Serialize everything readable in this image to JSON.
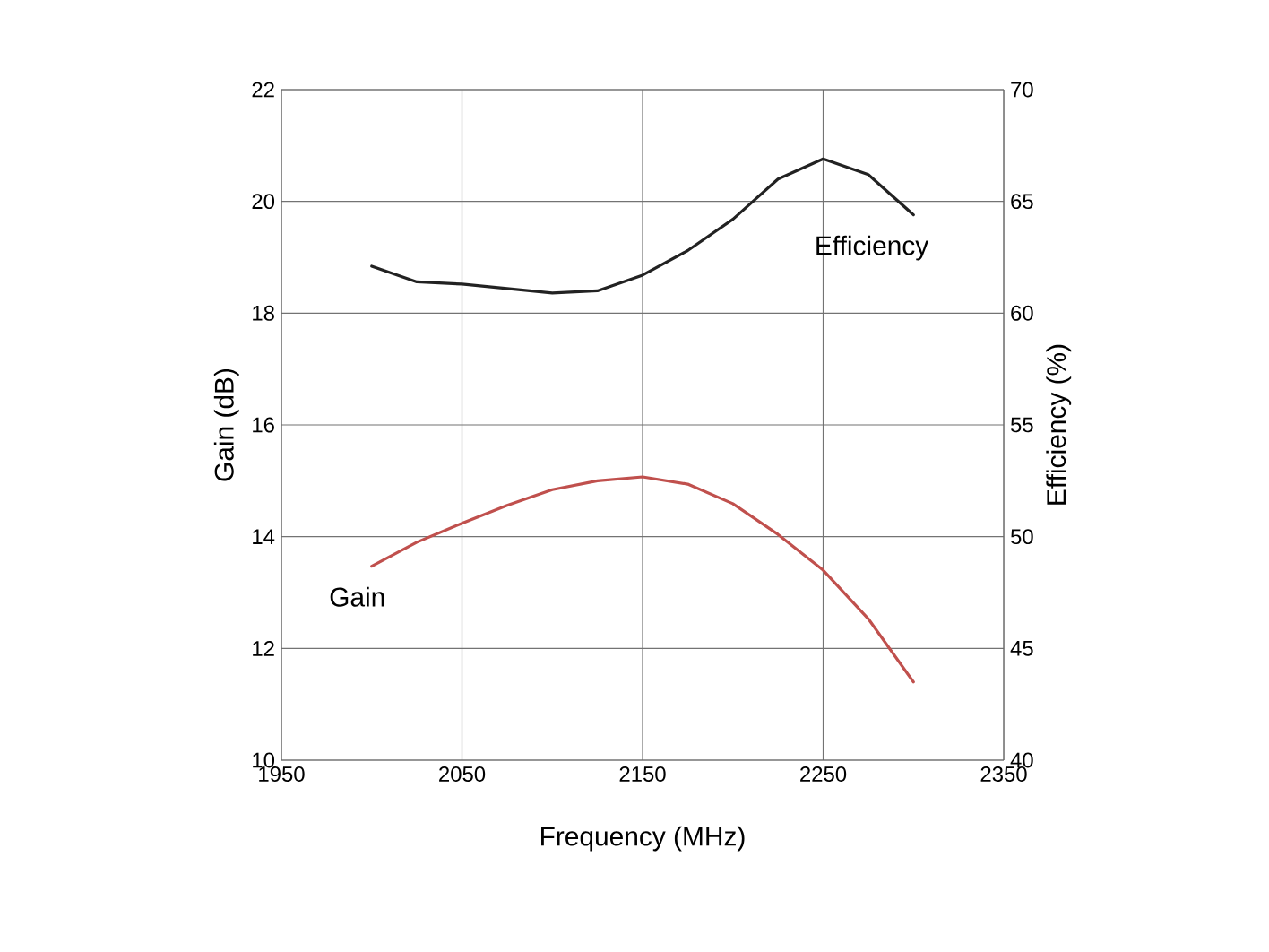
{
  "chart_data": {
    "type": "line",
    "xlabel": "Frequency (MHz)",
    "ylabel": "Gain (dB)",
    "y2label": "Efficiency (%)",
    "x": [
      2000,
      2025,
      2050,
      2075,
      2100,
      2125,
      2150,
      2175,
      2200,
      2225,
      2250,
      2275,
      2300
    ],
    "series": [
      {
        "name": "Efficiency",
        "color": "#222222",
        "axis": "y2",
        "values": [
          62.1,
          61.4,
          61.3,
          61.1,
          60.9,
          61.0,
          61.7,
          62.8,
          64.2,
          66.0,
          66.9,
          66.2,
          64.4
        ]
      },
      {
        "name": "Gain",
        "color": "#c0504d",
        "values": [
          13.47,
          13.9,
          14.24,
          14.56,
          14.84,
          15.0,
          15.07,
          14.94,
          14.59,
          14.04,
          13.4,
          12.53,
          11.4
        ]
      }
    ],
    "xlim": [
      1950,
      2350
    ],
    "xticks": [
      1950,
      2050,
      2150,
      2250,
      2350
    ],
    "ylim": [
      10,
      22
    ],
    "yticks": [
      10,
      12,
      14,
      16,
      18,
      20,
      22
    ],
    "y2lim": [
      40,
      70
    ],
    "y2ticks": [
      40,
      45,
      50,
      55,
      60,
      65,
      70
    ],
    "grid": true,
    "legend": false,
    "marker": "none",
    "line_style": "solid"
  }
}
